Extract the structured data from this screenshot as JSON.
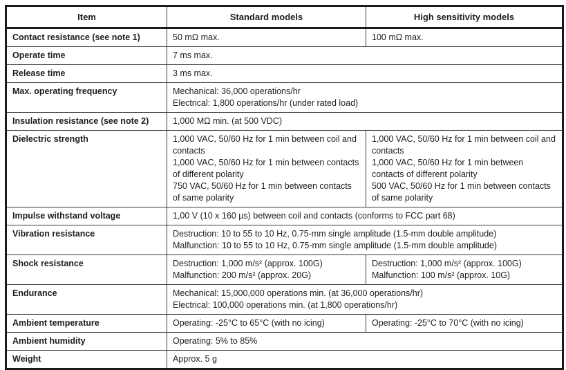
{
  "colors": {
    "border": "#1a1a1a",
    "text": "#1d1d1d",
    "background": "#ffffff"
  },
  "header": {
    "item": "Item",
    "standard": "Standard models",
    "high": "High sensitivity models"
  },
  "rows": [
    {
      "item": "Contact resistance (see note 1)",
      "standard": "50 mΩ max.",
      "high": "100 mΩ max."
    },
    {
      "item": "Operate time",
      "span": "7 ms max."
    },
    {
      "item": "Release time",
      "span": "3 ms max."
    },
    {
      "item": "Max. operating frequency",
      "span": "Mechanical: 36,000 operations/hr\nElectrical:  1,800 operations/hr (under rated load)"
    },
    {
      "item": "Insulation resistance (see note 2)",
      "span": "1,000 MΩ min. (at 500 VDC)"
    },
    {
      "item": "Dielectric strength",
      "standard": "1,000 VAC, 50/60 Hz for 1 min between coil and contacts\n1,000 VAC, 50/60 Hz for 1 min between contacts of different polarity\n750 VAC, 50/60 Hz for 1 min between contacts of same polarity",
      "high": "1,000 VAC, 50/60 Hz for 1 min between coil and contacts\n1,000 VAC, 50/60 Hz for 1 min between contacts of different polarity\n500 VAC, 50/60 Hz for 1 min between contacts of same polarity"
    },
    {
      "item": "Impulse withstand voltage",
      "span": "1,00 V (10 x 160 µs) between coil and contacts (conforms to FCC part 68)"
    },
    {
      "item": "Vibration resistance",
      "span": "Destruction: 10 to 55 to 10 Hz, 0.75-mm single amplitude (1.5-mm double amplitude)\nMalfunction: 10 to 55 to 10 Hz, 0.75-mm single amplitude (1.5-mm double amplitude)"
    },
    {
      "item": "Shock resistance",
      "standard": "Destruction: 1,000 m/s² (approx. 100G)\nMalfunction: 200 m/s² (approx. 20G)",
      "high": "Destruction: 1,000 m/s² (approx. 100G)\nMalfunction: 100 m/s² (approx. 10G)"
    },
    {
      "item": "Endurance",
      "span": "Mechanical:  15,000,000 operations min. (at 36,000 operations/hr)\nElectrical:  100,000 operations min. (at 1,800 operations/hr)"
    },
    {
      "item": "Ambient temperature",
      "standard": "Operating: -25°C to 65°C (with no icing)",
      "high": "Operating: -25°C to 70°C (with no icing)"
    },
    {
      "item": "Ambient humidity",
      "span": "Operating: 5% to 85%"
    },
    {
      "item": "Weight",
      "span": "Approx. 5 g"
    }
  ]
}
